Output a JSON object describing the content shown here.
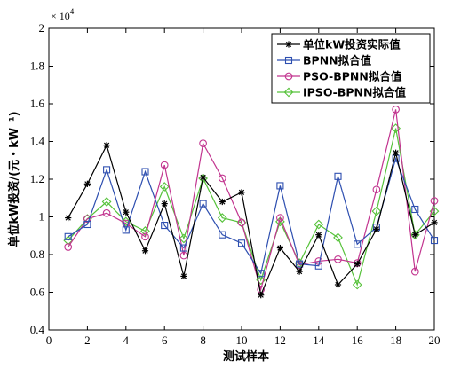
{
  "chart_data": {
    "type": "line",
    "title": "",
    "xlabel": "测试样本",
    "ylabel": "单位kW投资/(元・kW⁻¹)",
    "multiplier_label": "× 10",
    "multiplier_exp": "4",
    "xlim": [
      0,
      20
    ],
    "ylim": [
      0.4,
      2.0
    ],
    "x_ticks": [
      0,
      2,
      4,
      6,
      8,
      10,
      12,
      14,
      16,
      18,
      20
    ],
    "y_ticks": [
      0.4,
      0.6,
      0.8,
      1.0,
      1.2,
      1.4,
      1.6,
      1.8,
      2.0
    ],
    "y_tick_labels": [
      "0.4",
      "0.6",
      "0.8",
      "1",
      "1.2",
      "1.4",
      "1.6",
      "1.8",
      "2"
    ],
    "x": [
      1,
      2,
      3,
      4,
      5,
      6,
      7,
      8,
      9,
      10,
      11,
      12,
      13,
      14,
      15,
      16,
      17,
      18,
      19,
      20
    ],
    "legend_position": "top-right",
    "grid": false,
    "series": [
      {
        "name": "单位kW投资实际值",
        "color": "#000000",
        "marker": "star",
        "values": [
          0.995,
          1.175,
          1.38,
          1.025,
          0.82,
          1.07,
          0.685,
          1.21,
          1.08,
          1.13,
          0.585,
          0.835,
          0.71,
          0.905,
          0.64,
          0.75,
          0.935,
          1.34,
          0.905,
          0.97
        ]
      },
      {
        "name": "BPNN拟合值",
        "color": "#2e4fb0",
        "marker": "square",
        "values": [
          0.895,
          0.96,
          1.25,
          0.93,
          1.24,
          0.955,
          0.835,
          1.07,
          0.905,
          0.86,
          0.7,
          1.165,
          0.75,
          0.74,
          1.215,
          0.855,
          0.945,
          1.31,
          1.04,
          0.875
        ]
      },
      {
        "name": "PSO-BPNN拟合值",
        "color": "#c2348f",
        "marker": "circle",
        "values": [
          0.84,
          0.99,
          1.02,
          0.965,
          0.895,
          1.275,
          0.795,
          1.39,
          1.205,
          0.97,
          0.615,
          0.995,
          0.745,
          0.765,
          0.775,
          0.755,
          1.145,
          1.57,
          0.71,
          1.085
        ]
      },
      {
        "name": "IPSO-BPNN拟合值",
        "color": "#56c23a",
        "marker": "diamond",
        "values": [
          0.875,
          0.99,
          1.08,
          0.975,
          0.925,
          1.16,
          0.885,
          1.205,
          0.995,
          0.97,
          0.665,
          0.975,
          0.755,
          0.96,
          0.89,
          0.64,
          1.03,
          1.47,
          0.905,
          1.03
        ]
      }
    ]
  }
}
